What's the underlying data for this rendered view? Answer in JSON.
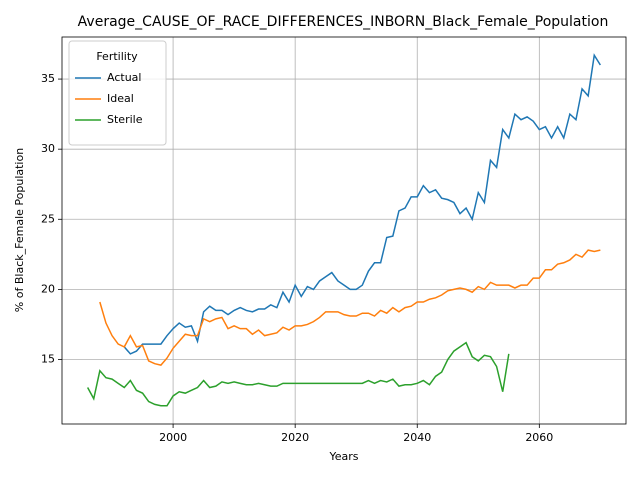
{
  "chart_data": {
    "type": "line",
    "title": "Average_CAUSE_OF_RACE_DIFFERENCES_INBORN_Black_Female_Population",
    "xlabel": "Years",
    "ylabel": "% of Black_Female Population",
    "legend_title": "Fertility",
    "legend": "upper left",
    "grid": true,
    "x": [
      1986,
      1987,
      1988,
      1989,
      1990,
      1991,
      1992,
      1993,
      1994,
      1995,
      1996,
      1997,
      1998,
      1999,
      2000,
      2001,
      2002,
      2003,
      2004,
      2005,
      2006,
      2007,
      2008,
      2009,
      2010,
      2011,
      2012,
      2013,
      2014,
      2015,
      2016,
      2017,
      2018,
      2019,
      2020,
      2021,
      2022,
      2023,
      2024,
      2025,
      2026,
      2027,
      2028,
      2029,
      2030,
      2031,
      2032,
      2033,
      2034,
      2035,
      2036,
      2037,
      2038,
      2039,
      2040,
      2041,
      2042,
      2043,
      2044,
      2045,
      2046,
      2047,
      2048,
      2049,
      2050,
      2051,
      2052,
      2053,
      2054,
      2055,
      2056,
      2057,
      2058,
      2059,
      2060,
      2061,
      2062,
      2063,
      2064,
      2065,
      2066,
      2067,
      2068,
      2069,
      2070
    ],
    "series": [
      {
        "name": "Actual",
        "color": "#1f77b4",
        "values": [
          null,
          null,
          null,
          null,
          null,
          null,
          15.9,
          15.4,
          15.6,
          16.1,
          16.1,
          16.1,
          16.1,
          16.7,
          17.2,
          17.6,
          17.3,
          17.4,
          16.3,
          18.4,
          18.8,
          18.5,
          18.5,
          18.2,
          18.5,
          18.7,
          18.5,
          18.4,
          18.6,
          18.6,
          18.9,
          18.7,
          19.8,
          19.1,
          20.3,
          19.5,
          20.2,
          20.0,
          20.6,
          20.9,
          21.2,
          20.6,
          20.3,
          20.0,
          20.0,
          20.3,
          21.3,
          21.9,
          21.9,
          23.7,
          23.8,
          25.6,
          25.8,
          26.6,
          26.6,
          27.4,
          26.9,
          27.1,
          26.5,
          26.4,
          26.2,
          25.4,
          25.8,
          25.0,
          26.9,
          26.2,
          29.2,
          28.7,
          31.4,
          30.8,
          32.5,
          32.1,
          32.3,
          32.0,
          31.4,
          31.6,
          30.8,
          31.6,
          30.8,
          32.5,
          32.1,
          34.3,
          33.8,
          36.7,
          36.0
        ]
      },
      {
        "name": "Ideal",
        "color": "#ff7f0e",
        "values": [
          null,
          null,
          19.1,
          17.6,
          16.7,
          16.1,
          15.9,
          16.7,
          15.9,
          16.0,
          14.9,
          14.7,
          14.6,
          15.1,
          15.8,
          16.3,
          16.8,
          16.7,
          16.7,
          17.9,
          17.7,
          17.9,
          18.0,
          17.2,
          17.4,
          17.2,
          17.2,
          16.8,
          17.1,
          16.7,
          16.8,
          16.9,
          17.3,
          17.1,
          17.4,
          17.4,
          17.5,
          17.7,
          18.0,
          18.4,
          18.4,
          18.4,
          18.2,
          18.1,
          18.1,
          18.3,
          18.3,
          18.1,
          18.5,
          18.3,
          18.7,
          18.4,
          18.7,
          18.8,
          19.1,
          19.1,
          19.3,
          19.4,
          19.6,
          19.9,
          20.0,
          20.1,
          20.0,
          19.8,
          20.2,
          20.0,
          20.5,
          20.3,
          20.3,
          20.3,
          20.1,
          20.3,
          20.3,
          20.8,
          20.8,
          21.4,
          21.4,
          21.8,
          21.9,
          22.1,
          22.5,
          22.3,
          22.8,
          22.7,
          22.8
        ]
      },
      {
        "name": "Sterile",
        "color": "#2ca02c",
        "values": [
          13.0,
          12.2,
          14.2,
          13.7,
          13.6,
          13.3,
          13.0,
          13.5,
          12.8,
          12.6,
          12.0,
          11.8,
          11.7,
          11.7,
          12.4,
          12.7,
          12.6,
          12.8,
          13.0,
          13.5,
          13.0,
          13.1,
          13.4,
          13.3,
          13.4,
          13.3,
          13.2,
          13.2,
          13.3,
          13.2,
          13.1,
          13.1,
          13.3,
          13.3,
          13.3,
          13.3,
          13.3,
          13.3,
          13.3,
          13.3,
          13.3,
          13.3,
          13.3,
          13.3,
          13.3,
          13.3,
          13.5,
          13.3,
          13.5,
          13.4,
          13.6,
          13.1,
          13.2,
          13.2,
          13.3,
          13.5,
          13.2,
          13.8,
          14.1,
          15.0,
          15.6,
          15.9,
          16.2,
          15.2,
          14.9,
          15.3,
          15.2,
          14.5,
          12.7,
          15.4,
          null,
          null,
          null,
          null,
          null,
          null,
          null,
          null,
          null,
          null,
          null,
          null,
          null,
          null,
          null
        ]
      }
    ],
    "xlim": [
      1981.8,
      2074.2
    ],
    "xticks": [
      2000,
      2020,
      2040,
      2060
    ],
    "ylim": [
      10.4,
      38.0
    ],
    "yticks": [
      15,
      20,
      25,
      30,
      35
    ]
  }
}
